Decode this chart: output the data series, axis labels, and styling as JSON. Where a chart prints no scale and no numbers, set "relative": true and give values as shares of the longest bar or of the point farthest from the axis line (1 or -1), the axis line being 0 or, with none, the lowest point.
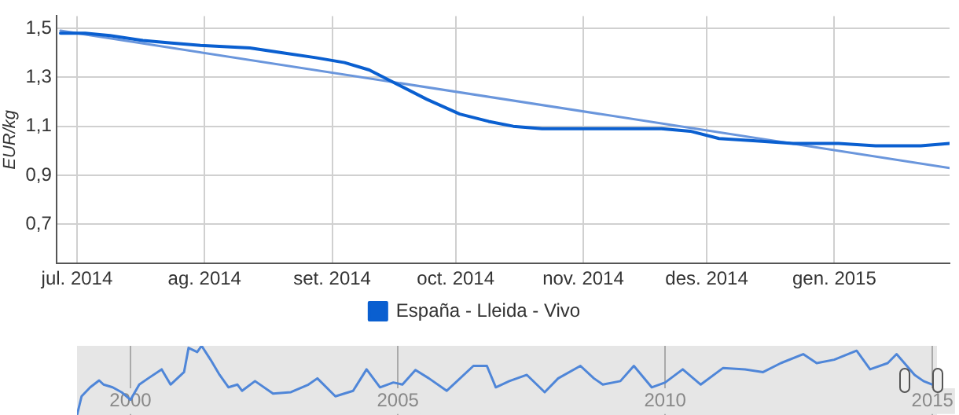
{
  "chart_data": [
    {
      "type": "line",
      "ylabel": "EUR/kg",
      "legend": "bottom",
      "grid": true,
      "marker": "none",
      "line_style": "solid",
      "xlim": [
        "2014-06-26",
        "2015-01-29"
      ],
      "xticks": [
        {
          "value": "2014-07-01",
          "label": "jul. 2014"
        },
        {
          "value": "2014-08-01",
          "label": "ag. 2014"
        },
        {
          "value": "2014-09-01",
          "label": "set. 2014"
        },
        {
          "value": "2014-10-01",
          "label": "oct. 2014"
        },
        {
          "value": "2014-11-01",
          "label": "nov. 2014"
        },
        {
          "value": "2014-12-01",
          "label": "des. 2014"
        },
        {
          "value": "2015-01-01",
          "label": "gen. 2015"
        }
      ],
      "ylim": [
        0.54,
        1.55
      ],
      "yticks": [
        {
          "value": 0.7,
          "label": "0,7"
        },
        {
          "value": 0.9,
          "label": "0,9"
        },
        {
          "value": 1.1,
          "label": "1,1"
        },
        {
          "value": 1.3,
          "label": "1,3"
        },
        {
          "value": 1.5,
          "label": "1,5"
        }
      ],
      "series": [
        {
          "name": "España - Lleida - Vivo",
          "color": "#0a5fd0",
          "x": [
            "2014-06-27",
            "2014-07-03",
            "2014-07-09",
            "2014-07-17",
            "2014-07-24",
            "2014-07-31",
            "2014-08-12",
            "2014-08-20",
            "2014-08-28",
            "2014-09-04",
            "2014-09-10",
            "2014-09-17",
            "2014-09-24",
            "2014-10-02",
            "2014-10-09",
            "2014-10-15",
            "2014-10-22",
            "2014-11-06",
            "2014-11-20",
            "2014-11-27",
            "2014-12-04",
            "2014-12-13",
            "2014-12-22",
            "2015-01-02",
            "2015-01-11",
            "2015-01-22",
            "2015-01-29"
          ],
          "values": [
            1.48,
            1.48,
            1.47,
            1.45,
            1.44,
            1.43,
            1.42,
            1.4,
            1.38,
            1.36,
            1.33,
            1.27,
            1.21,
            1.15,
            1.12,
            1.1,
            1.09,
            1.09,
            1.09,
            1.08,
            1.05,
            1.04,
            1.03,
            1.03,
            1.02,
            1.02,
            1.03
          ]
        },
        {
          "type": "line",
          "color": "#6a96dc",
          "x": [
            "2014-06-27",
            "2015-01-29"
          ],
          "values": [
            1.49,
            0.93
          ]
        }
      ]
    },
    {
      "type": "line",
      "relative": true,
      "grid": "x",
      "tick_labels": "x",
      "marker": "none",
      "line_style": "solid",
      "xlim": [
        "1999-01",
        "2015-02"
      ],
      "xticks": [
        {
          "value": "2000",
          "label": "2000"
        },
        {
          "value": "2005",
          "label": "2005"
        },
        {
          "value": "2010",
          "label": "2010"
        },
        {
          "value": "2015",
          "label": "2015"
        }
      ],
      "series": [
        {
          "color": "#4f86d8",
          "x": [
            "1999-01",
            "1999-02",
            "1999-04",
            "1999-06",
            "1999-07",
            "1999-09",
            "1999-11",
            "2000-01",
            "2000-03",
            "2000-05",
            "2000-08",
            "2000-10",
            "2001-01",
            "2001-02",
            "2001-04",
            "2001-05",
            "2001-07",
            "2001-09",
            "2001-11",
            "2002-01",
            "2002-02",
            "2002-05",
            "2002-09",
            "2003-01",
            "2003-05",
            "2003-07",
            "2003-11",
            "2004-03",
            "2004-06",
            "2004-09",
            "2004-12",
            "2005-02",
            "2005-05",
            "2005-08",
            "2005-12",
            "2006-06",
            "2006-09",
            "2006-11",
            "2007-02",
            "2007-06",
            "2007-10",
            "2008-01",
            "2008-06",
            "2008-09",
            "2008-11",
            "2009-03",
            "2009-06",
            "2009-10",
            "2010-01",
            "2010-05",
            "2010-09",
            "2011-02",
            "2011-07",
            "2011-11",
            "2012-03",
            "2012-08",
            "2012-11",
            "2013-03",
            "2013-08",
            "2013-11",
            "2014-03",
            "2014-05",
            "2014-09",
            "2014-11",
            "2015-01"
          ],
          "values": [
            0,
            0.27,
            0.4,
            0.5,
            0.44,
            0.4,
            0.33,
            0.22,
            0.44,
            0.53,
            0.66,
            0.44,
            0.62,
            0.97,
            0.91,
            1,
            0.8,
            0.58,
            0.4,
            0.44,
            0.35,
            0.49,
            0.31,
            0.33,
            0.44,
            0.53,
            0.27,
            0.35,
            0.66,
            0.4,
            0.47,
            0.44,
            0.65,
            0.53,
            0.35,
            0.71,
            0.71,
            0.4,
            0.49,
            0.58,
            0.33,
            0.53,
            0.71,
            0.53,
            0.44,
            0.49,
            0.71,
            0.4,
            0.47,
            0.66,
            0.44,
            0.68,
            0.66,
            0.62,
            0.75,
            0.88,
            0.75,
            0.8,
            0.93,
            0.66,
            0.75,
            0.88,
            0.58,
            0.49,
            0.44
          ]
        }
      ]
    }
  ]
}
